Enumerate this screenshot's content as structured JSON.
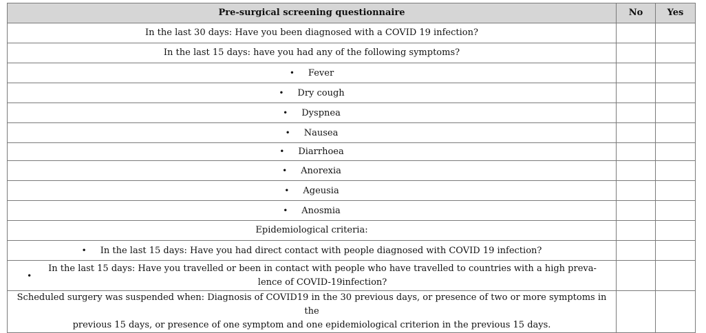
{
  "header": {
    "title": "Pre-surgical screening questionnaire",
    "no": "No",
    "yes": "Yes"
  },
  "rows": {
    "q1": "In the last 30 days: Have you been diagnosed with a COVID 19 infection?",
    "q2": "In the last 15 days: have you had any of the following symptoms?",
    "symptoms": [
      "Fever",
      "Dry cough",
      "Dyspnea",
      "Nausea",
      "Diarrhoea",
      "Anorexia",
      "Ageusia",
      "Anosmia"
    ],
    "epi_heading": "Epidemiological criteria:",
    "epi1": "In the last 15 days: Have you had direct contact with people diagnosed with COVID 19 infection?",
    "epi2_line1": "In the last 15 days: Have you travelled or been in contact with people who have travelled to countries with a high preva-",
    "epi2_line2": "lence of COVID-19infection?",
    "note_line1": "Scheduled surgery was suspended when: Diagnosis of COVID19 in the 30 previous days, or presence of two or more symptoms in the",
    "note_line2": "previous 15 days, or presence of one symptom and one epidemiological criterion in the previous 15 days."
  },
  "bullet": "•"
}
